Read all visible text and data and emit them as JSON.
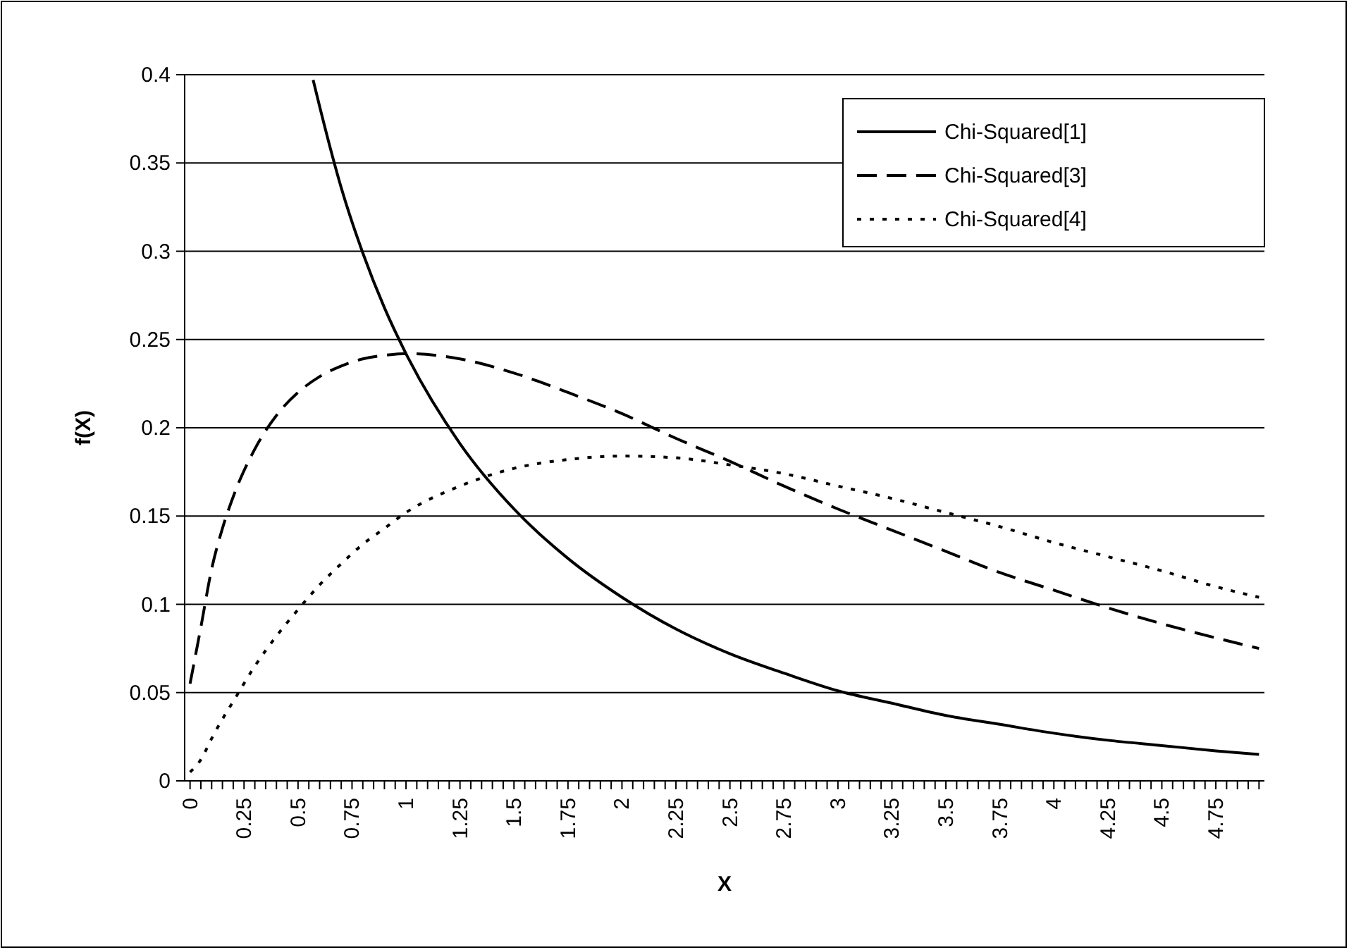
{
  "chart_data": {
    "type": "line",
    "xlabel": "X",
    "ylabel": "f(X)",
    "xlim": [
      -0.025,
      4.975
    ],
    "xticks": [
      0,
      {
        "value": 0.05,
        "label": null
      },
      {
        "value": 0.1,
        "label": null
      },
      {
        "value": 0.15,
        "label": null
      },
      {
        "value": 0.2,
        "label": null
      },
      0.25,
      {
        "value": 0.3,
        "label": null
      },
      {
        "value": 0.35,
        "label": null
      },
      {
        "value": 0.4,
        "label": null
      },
      {
        "value": 0.45,
        "label": null
      },
      0.5,
      {
        "value": 0.55,
        "label": null
      },
      {
        "value": 0.6,
        "label": null
      },
      {
        "value": 0.65,
        "label": null
      },
      {
        "value": 0.7,
        "label": null
      },
      0.75,
      {
        "value": 0.8,
        "label": null
      },
      {
        "value": 0.85,
        "label": null
      },
      {
        "value": 0.9,
        "label": null
      },
      {
        "value": 0.95,
        "label": null
      },
      1,
      {
        "value": 1.05,
        "label": null
      },
      {
        "value": 1.1,
        "label": null
      },
      {
        "value": 1.15,
        "label": null
      },
      {
        "value": 1.2,
        "label": null
      },
      1.25,
      {
        "value": 1.3,
        "label": null
      },
      {
        "value": 1.35,
        "label": null
      },
      {
        "value": 1.4,
        "label": null
      },
      {
        "value": 1.45,
        "label": null
      },
      1.5,
      {
        "value": 1.55,
        "label": null
      },
      {
        "value": 1.6,
        "label": null
      },
      {
        "value": 1.65,
        "label": null
      },
      {
        "value": 1.7,
        "label": null
      },
      1.75,
      {
        "value": 1.8,
        "label": null
      },
      {
        "value": 1.85,
        "label": null
      },
      {
        "value": 1.9,
        "label": null
      },
      {
        "value": 1.95,
        "label": null
      },
      2,
      {
        "value": 2.05,
        "label": null
      },
      {
        "value": 2.1,
        "label": null
      },
      {
        "value": 2.15,
        "label": null
      },
      {
        "value": 2.2,
        "label": null
      },
      2.25,
      {
        "value": 2.3,
        "label": null
      },
      {
        "value": 2.35,
        "label": null
      },
      {
        "value": 2.4,
        "label": null
      },
      {
        "value": 2.45,
        "label": null
      },
      2.5,
      {
        "value": 2.55,
        "label": null
      },
      {
        "value": 2.6,
        "label": null
      },
      {
        "value": 2.65,
        "label": null
      },
      {
        "value": 2.7,
        "label": null
      },
      2.75,
      {
        "value": 2.8,
        "label": null
      },
      {
        "value": 2.85,
        "label": null
      },
      {
        "value": 2.9,
        "label": null
      },
      {
        "value": 2.95,
        "label": null
      },
      3,
      {
        "value": 3.05,
        "label": null
      },
      {
        "value": 3.1,
        "label": null
      },
      {
        "value": 3.15,
        "label": null
      },
      {
        "value": 3.2,
        "label": null
      },
      3.25,
      {
        "value": 3.3,
        "label": null
      },
      {
        "value": 3.35,
        "label": null
      },
      {
        "value": 3.4,
        "label": null
      },
      {
        "value": 3.45,
        "label": null
      },
      3.5,
      {
        "value": 3.55,
        "label": null
      },
      {
        "value": 3.6,
        "label": null
      },
      {
        "value": 3.65,
        "label": null
      },
      {
        "value": 3.7,
        "label": null
      },
      3.75,
      {
        "value": 3.8,
        "label": null
      },
      {
        "value": 3.85,
        "label": null
      },
      {
        "value": 3.9,
        "label": null
      },
      {
        "value": 3.95,
        "label": null
      },
      4,
      {
        "value": 4.05,
        "label": null
      },
      {
        "value": 4.1,
        "label": null
      },
      {
        "value": 4.15,
        "label": null
      },
      {
        "value": 4.2,
        "label": null
      },
      4.25,
      {
        "value": 4.3,
        "label": null
      },
      {
        "value": 4.35,
        "label": null
      },
      {
        "value": 4.4,
        "label": null
      },
      {
        "value": 4.45,
        "label": null
      },
      4.5,
      {
        "value": 4.55,
        "label": null
      },
      {
        "value": 4.6,
        "label": null
      },
      {
        "value": 4.65,
        "label": null
      },
      {
        "value": 4.7,
        "label": null
      },
      4.75,
      {
        "value": 4.8,
        "label": null
      },
      {
        "value": 4.85,
        "label": null
      },
      {
        "value": 4.9,
        "label": null
      },
      {
        "value": 4.95,
        "label": null
      }
    ],
    "ylim": [
      0,
      0.4
    ],
    "yticks": [
      0,
      0.05,
      0.1,
      0.15,
      0.2,
      0.25,
      0.3,
      0.35,
      0.4
    ],
    "grid": "y",
    "legend": "top right",
    "series": [
      {
        "name": "Chi-Squared[1]",
        "color": "#000000",
        "line_style": "solid",
        "x": [
          0.57,
          0.6,
          0.7,
          0.8,
          0.9,
          1,
          1.25,
          1.5,
          1.75,
          2,
          2.25,
          2.5,
          2.75,
          3,
          3.25,
          3.5,
          3.75,
          4,
          4.25,
          4.5,
          4.75,
          4.95
        ],
        "values": [
          0.397,
          0.382,
          0.336,
          0.299,
          0.268,
          0.242,
          0.191,
          0.154,
          0.126,
          0.104,
          0.086,
          0.072,
          0.061,
          0.051,
          0.044,
          0.037,
          0.032,
          0.027,
          0.023,
          0.02,
          0.017,
          0.015
        ]
      },
      {
        "name": "Chi-Squared[3]",
        "color": "#000000",
        "line_style": "dashed",
        "x": [
          0,
          0.05,
          0.1,
          0.15,
          0.2,
          0.3,
          0.4,
          0.5,
          0.6,
          0.7,
          0.8,
          0.9,
          1,
          1.25,
          1.5,
          1.75,
          2,
          2.25,
          2.5,
          2.75,
          3,
          3.25,
          3.5,
          3.75,
          4,
          4.25,
          4.5,
          4.75,
          4.95
        ],
        "values": [
          0.055,
          0.087,
          0.12,
          0.143,
          0.161,
          0.188,
          0.207,
          0.22,
          0.229,
          0.235,
          0.239,
          0.241,
          0.242,
          0.239,
          0.231,
          0.22,
          0.208,
          0.194,
          0.181,
          0.167,
          0.154,
          0.142,
          0.13,
          0.118,
          0.108,
          0.098,
          0.089,
          0.081,
          0.075
        ]
      },
      {
        "name": "Chi-Squared[4]",
        "color": "#000000",
        "line_style": "dotted",
        "x": [
          0,
          0.05,
          0.1,
          0.15,
          0.2,
          0.3,
          0.4,
          0.5,
          0.6,
          0.7,
          0.8,
          0.9,
          1,
          1.25,
          1.5,
          1.75,
          2,
          2.25,
          2.5,
          2.75,
          3,
          3.25,
          3.5,
          3.75,
          4,
          4.25,
          4.5,
          4.75,
          4.95
        ],
        "values": [
          0.005,
          0.012,
          0.024,
          0.035,
          0.045,
          0.065,
          0.082,
          0.097,
          0.111,
          0.123,
          0.134,
          0.143,
          0.152,
          0.167,
          0.177,
          0.182,
          0.184,
          0.183,
          0.179,
          0.174,
          0.167,
          0.16,
          0.152,
          0.144,
          0.135,
          0.127,
          0.119,
          0.11,
          0.104
        ]
      }
    ]
  }
}
